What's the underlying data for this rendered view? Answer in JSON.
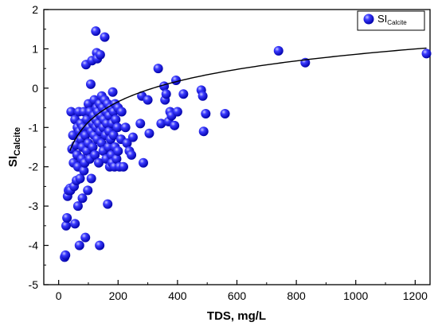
{
  "chart_data": {
    "type": "scatter",
    "xlabel": "TDS, mg/L",
    "ylabel": "SI",
    "ylabel_sub": "Calcite",
    "xlim": [
      -50,
      1250
    ],
    "ylim": [
      -5,
      2
    ],
    "xticks": [
      0,
      200,
      400,
      600,
      800,
      1000,
      1200
    ],
    "yticks": [
      -5,
      -4,
      -3,
      -2,
      -1,
      0,
      1,
      2
    ],
    "grid": false,
    "legend_position": "top-right",
    "series": [
      {
        "name": "SI",
        "name_sub": "Calcite",
        "color": "#1f1fe0",
        "marker": "sphere",
        "points": [
          [
            20,
            -4.3
          ],
          [
            23,
            -4.25
          ],
          [
            25,
            -3.5
          ],
          [
            28,
            -3.3
          ],
          [
            30,
            -2.75
          ],
          [
            33,
            -2.6
          ],
          [
            38,
            -2.55
          ],
          [
            40,
            -2.6
          ],
          [
            42,
            -0.6
          ],
          [
            45,
            -1.55
          ],
          [
            48,
            -1.2
          ],
          [
            50,
            -1.9
          ],
          [
            52,
            -2.5
          ],
          [
            55,
            -0.8
          ],
          [
            55,
            -3.45
          ],
          [
            58,
            -1.45
          ],
          [
            60,
            -2.35
          ],
          [
            62,
            -1.7
          ],
          [
            63,
            -1.0
          ],
          [
            65,
            -2.0
          ],
          [
            65,
            -3.0
          ],
          [
            68,
            -0.6
          ],
          [
            70,
            -1.1
          ],
          [
            70,
            -4.0
          ],
          [
            72,
            -2.3
          ],
          [
            75,
            -1.3
          ],
          [
            75,
            -0.9
          ],
          [
            78,
            -1.8
          ],
          [
            80,
            -1.5
          ],
          [
            80,
            -2.8
          ],
          [
            82,
            -1.0
          ],
          [
            85,
            -0.6
          ],
          [
            85,
            -2.1
          ],
          [
            88,
            -1.9
          ],
          [
            90,
            -1.2
          ],
          [
            90,
            -3.8
          ],
          [
            92,
            0.6
          ],
          [
            95,
            -0.8
          ],
          [
            95,
            -1.6
          ],
          [
            98,
            -2.6
          ],
          [
            100,
            -1.4
          ],
          [
            100,
            -0.4
          ],
          [
            102,
            -1.0
          ],
          [
            105,
            -1.8
          ],
          [
            105,
            -0.6
          ],
          [
            108,
            0.1
          ],
          [
            110,
            -2.3
          ],
          [
            110,
            -1.1
          ],
          [
            112,
            0.7
          ],
          [
            115,
            -0.9
          ],
          [
            115,
            -1.5
          ],
          [
            118,
            -0.7
          ],
          [
            120,
            -1.2
          ],
          [
            120,
            -0.3
          ],
          [
            122,
            -1.7
          ],
          [
            125,
            1.45
          ],
          [
            125,
            -0.8
          ],
          [
            126,
            -1.0
          ],
          [
            128,
            0.9
          ],
          [
            128,
            -0.5
          ],
          [
            130,
            0.75
          ],
          [
            130,
            -1.3
          ],
          [
            132,
            -0.6
          ],
          [
            135,
            -1.9
          ],
          [
            135,
            -0.9
          ],
          [
            138,
            -4.0
          ],
          [
            138,
            -0.4
          ],
          [
            140,
            0.85
          ],
          [
            140,
            -1.1
          ],
          [
            142,
            -0.7
          ],
          [
            145,
            -1.4
          ],
          [
            145,
            -0.2
          ],
          [
            148,
            -0.5
          ],
          [
            150,
            -1.0
          ],
          [
            150,
            -1.6
          ],
          [
            152,
            -0.8
          ],
          [
            155,
            1.3
          ],
          [
            155,
            -0.3
          ],
          [
            158,
            -1.2
          ],
          [
            160,
            -0.6
          ],
          [
            160,
            -1.8
          ],
          [
            162,
            -0.9
          ],
          [
            165,
            -2.95
          ],
          [
            165,
            -0.4
          ],
          [
            168,
            -1.5
          ],
          [
            170,
            -1.1
          ],
          [
            170,
            -0.7
          ],
          [
            172,
            -2.0
          ],
          [
            175,
            -1.3
          ],
          [
            175,
            -0.5
          ],
          [
            178,
            -1.7
          ],
          [
            180,
            -0.9
          ],
          [
            180,
            -1.9
          ],
          [
            182,
            -0.1
          ],
          [
            185,
            -1.2
          ],
          [
            185,
            -0.6
          ],
          [
            188,
            -2.0
          ],
          [
            190,
            -1.5
          ],
          [
            190,
            -0.4
          ],
          [
            192,
            -0.8
          ],
          [
            195,
            -1.8
          ],
          [
            198,
            -1.0
          ],
          [
            200,
            -0.5
          ],
          [
            200,
            -1.6
          ],
          [
            205,
            -2.0
          ],
          [
            210,
            -1.3
          ],
          [
            212,
            -0.6
          ],
          [
            218,
            -2.0
          ],
          [
            225,
            -1.0
          ],
          [
            230,
            -1.4
          ],
          [
            238,
            -1.6
          ],
          [
            245,
            -1.7
          ],
          [
            250,
            -1.25
          ],
          [
            275,
            -0.9
          ],
          [
            280,
            -0.2
          ],
          [
            285,
            -1.9
          ],
          [
            300,
            -0.3
          ],
          [
            305,
            -1.15
          ],
          [
            335,
            0.5
          ],
          [
            345,
            -0.9
          ],
          [
            355,
            0.05
          ],
          [
            358,
            -0.3
          ],
          [
            362,
            -0.15
          ],
          [
            370,
            -0.85
          ],
          [
            375,
            -0.6
          ],
          [
            380,
            -0.7
          ],
          [
            390,
            -0.95
          ],
          [
            395,
            0.2
          ],
          [
            400,
            -0.6
          ],
          [
            420,
            -0.15
          ],
          [
            480,
            -0.05
          ],
          [
            485,
            -0.2
          ],
          [
            488,
            -1.1
          ],
          [
            495,
            -0.65
          ],
          [
            560,
            -0.65
          ],
          [
            740,
            0.95
          ],
          [
            830,
            0.65
          ],
          [
            1238,
            0.88
          ]
        ]
      }
    ],
    "trend_curve": {
      "type": "logarithmic",
      "a": -4.32,
      "b": 0.75,
      "x_start": 38,
      "x_end": 1238,
      "color": "#000000"
    }
  }
}
